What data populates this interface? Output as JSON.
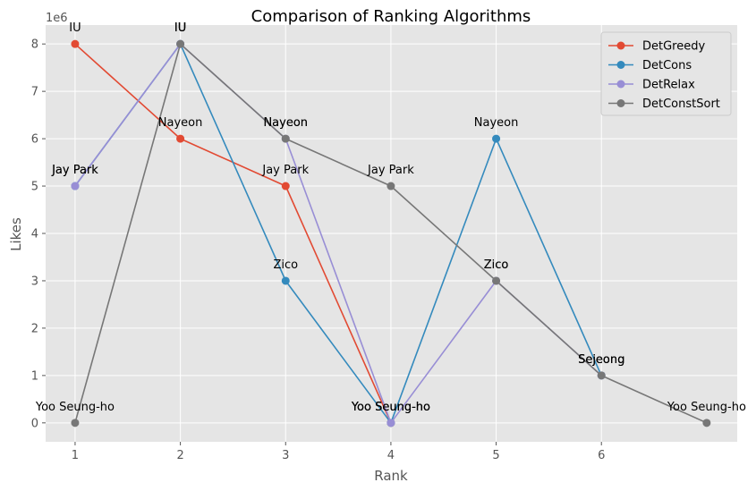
{
  "chart_data": {
    "type": "line",
    "title": "Comparison of Ranking Algorithms",
    "xlabel": "Rank",
    "ylabel": "Likes",
    "y_offset_label": "1e6",
    "xlim": [
      0.72,
      7.29
    ],
    "ylim": [
      -0.4,
      8.4
    ],
    "x_ticks": [
      1,
      2,
      3,
      4,
      5,
      6
    ],
    "y_ticks": [
      0,
      1,
      2,
      3,
      4,
      5,
      6,
      7,
      8
    ],
    "grid": true,
    "legend_position": "top-right",
    "series": [
      {
        "name": "DetGreedy",
        "color": "#E24A33",
        "x": [
          1,
          2,
          3,
          4
        ],
        "y": [
          8,
          6,
          5,
          0
        ],
        "labels": [
          "IU",
          "Nayeon",
          "Jay Park",
          "Yoo Seung-ho"
        ]
      },
      {
        "name": "DetCons",
        "color": "#348ABD",
        "x": [
          1,
          2,
          3,
          4,
          5,
          6
        ],
        "y": [
          5,
          8,
          3,
          0,
          6,
          1
        ],
        "labels": [
          "Jay Park",
          "IU",
          "Zico",
          "Yoo Seung-ho",
          "Nayeon",
          "Sejeong"
        ]
      },
      {
        "name": "DetRelax",
        "color": "#988ED5",
        "x": [
          1,
          2,
          3,
          4,
          5,
          6
        ],
        "y": [
          5,
          8,
          6,
          0,
          3,
          1
        ],
        "labels": [
          "Jay Park",
          "IU",
          "Nayeon",
          "Yoo Seung-ho",
          "Zico",
          "Sejeong"
        ]
      },
      {
        "name": "DetConstSort",
        "color": "#777777",
        "x": [
          1,
          2,
          3,
          4,
          5,
          6,
          7
        ],
        "y": [
          0,
          8,
          6,
          5,
          3,
          1,
          0
        ],
        "labels": [
          "Yoo Seung-ho",
          "IU",
          "Nayeon",
          "Jay Park",
          "Zico",
          "Sejeong",
          "Yoo Seung-ho"
        ]
      }
    ]
  }
}
